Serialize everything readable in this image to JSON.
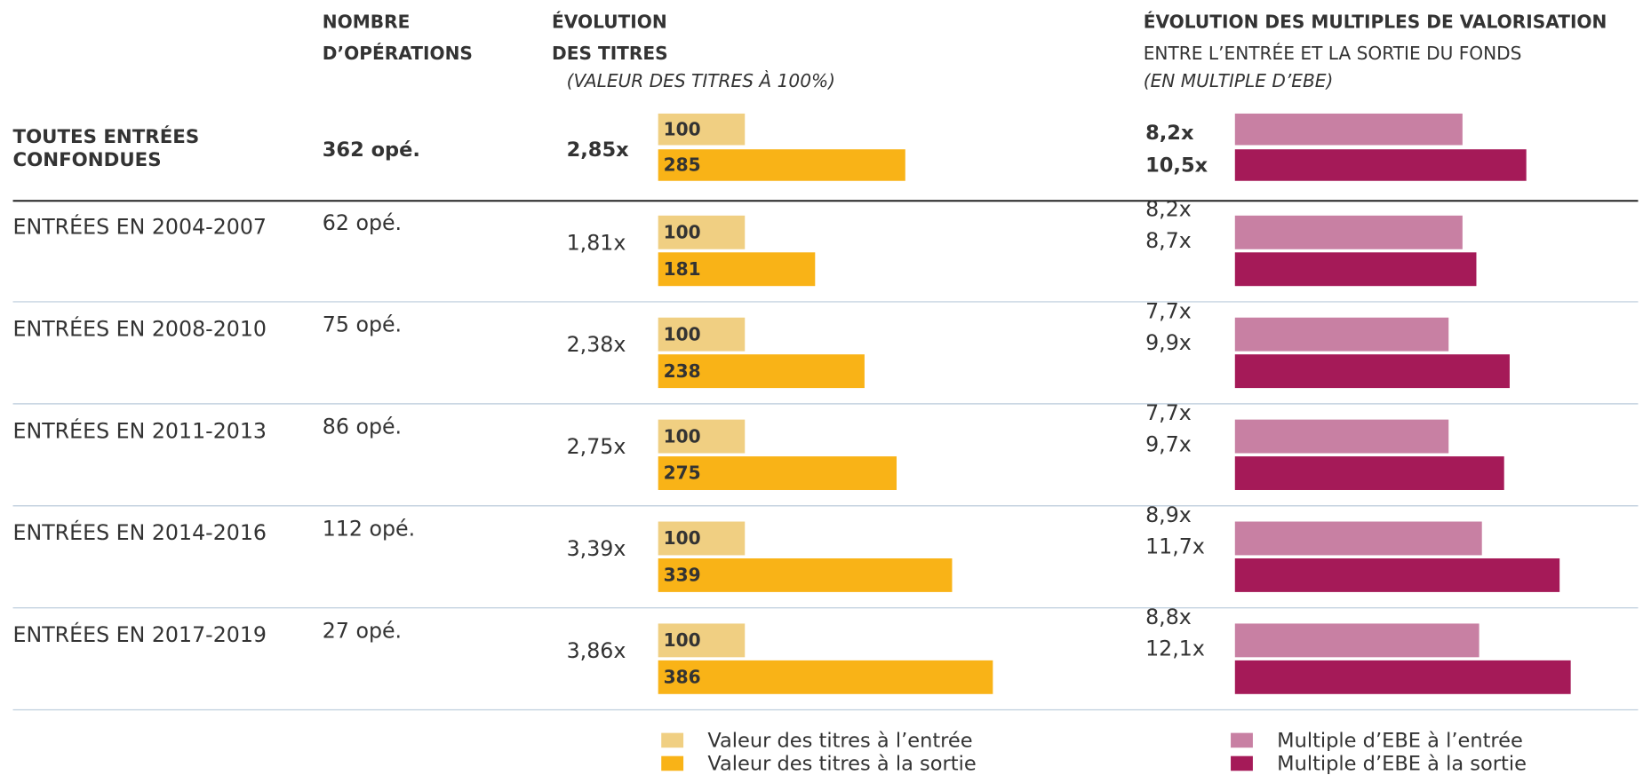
{
  "headers": {
    "operations": [
      "NOMBRE",
      "D’OPÉRATIONS"
    ],
    "titres": [
      "ÉVOLUTION",
      "DES TITRES"
    ],
    "titres_note": "(VALEUR DES TITRES À 100%)",
    "multiples": "ÉVOLUTION DES MULTIPLES DE VALORISATION",
    "multiples_sub": "ENTRE L’ENTRÉE ET LA SORTIE DU FONDS",
    "multiples_note": "(EN MULTIPLE D’EBE)"
  },
  "rows": [
    {
      "label": [
        "TOUTES ENTRÉES",
        "CONFONDUES"
      ],
      "operations": "362 opé.",
      "ratio": "2,85x",
      "titres": [
        100,
        285
      ],
      "multiples": [
        8.2,
        10.5
      ],
      "multiple_labels": [
        "8,2x",
        "10,5x"
      ]
    },
    {
      "label": [
        "ENTRÉES EN 2004-2007"
      ],
      "operations": "62 opé.",
      "ratio": "1,81x",
      "titres": [
        100,
        181
      ],
      "multiples": [
        8.2,
        8.7
      ],
      "multiple_labels": [
        "8,2x",
        "8,7x"
      ]
    },
    {
      "label": [
        "ENTRÉES EN 2008-2010"
      ],
      "operations": "75 opé.",
      "ratio": "2,38x",
      "titres": [
        100,
        238
      ],
      "multiples": [
        7.7,
        9.9
      ],
      "multiple_labels": [
        "7,7x",
        "9,9x"
      ]
    },
    {
      "label": [
        "ENTRÉES EN 2011-2013"
      ],
      "operations": "86 opé.",
      "ratio": "2,75x",
      "titres": [
        100,
        275
      ],
      "multiples": [
        7.7,
        9.7
      ],
      "multiple_labels": [
        "7,7x",
        "9,7x"
      ]
    },
    {
      "label": [
        "ENTRÉES EN 2014-2016"
      ],
      "operations": "112 opé.",
      "ratio": "3,39x",
      "titres": [
        100,
        339
      ],
      "multiples": [
        8.9,
        11.7
      ],
      "multiple_labels": [
        "8,9x",
        "11,7x"
      ]
    },
    {
      "label": [
        "ENTRÉES EN 2017-2019"
      ],
      "operations": "27 opé.",
      "ratio": "3,86x",
      "titres": [
        100,
        386
      ],
      "multiples": [
        8.8,
        12.1
      ],
      "multiple_labels": [
        "8,8x",
        "12,1x"
      ]
    }
  ],
  "legend": {
    "titres": [
      {
        "name": "Valeur des titres à l’entrée",
        "color": "#f0cf82"
      },
      {
        "name": "Valeur des titres à la sortie",
        "color": "#f9b317"
      }
    ],
    "multiples": [
      {
        "name": "Multiple d’EBE à l’entrée",
        "color": "#c880a3"
      },
      {
        "name": "Multiple d’EBE à la sortie",
        "color": "#a51a58"
      }
    ]
  }
}
